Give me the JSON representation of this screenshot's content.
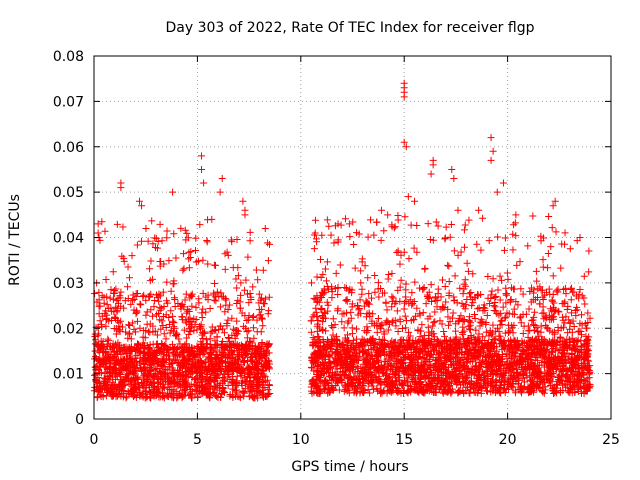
{
  "chart_data": {
    "type": "scatter",
    "title": "Day 303 of 2022, Rate Of TEC Index for receiver flgp",
    "xlabel": "GPS time / hours",
    "ylabel": "ROTI / TECUs",
    "xlim": [
      0,
      25
    ],
    "ylim": [
      0,
      0.08
    ],
    "xticks": [
      0,
      5,
      10,
      15,
      20,
      25
    ],
    "yticks": [
      0,
      0.01,
      0.02,
      0.03,
      0.04,
      0.05,
      0.06,
      0.07,
      0.08
    ],
    "xtick_labels": [
      "0",
      "5",
      "10",
      "15",
      "20",
      "25"
    ],
    "ytick_labels": [
      "0",
      "0.01",
      "0.02",
      "0.03",
      "0.04",
      "0.05",
      "0.06",
      "0.07",
      "0.08"
    ],
    "grid": true,
    "marker": "+",
    "series_color": "#ff0000",
    "series": [
      {
        "name": "ROTI",
        "segments": [
          {
            "x_start": 0.0,
            "x_end": 8.5,
            "base": 0.01
          },
          {
            "x_start": 10.5,
            "x_end": 24.0,
            "base": 0.011
          }
        ],
        "points": [
          [
            0.2,
            0.041
          ],
          [
            0.2,
            0.043
          ],
          [
            1.3,
            0.052
          ],
          [
            1.3,
            0.051
          ],
          [
            2.2,
            0.048
          ],
          [
            2.3,
            0.047
          ],
          [
            3.8,
            0.05
          ],
          [
            4.2,
            0.042
          ],
          [
            5.2,
            0.058
          ],
          [
            5.2,
            0.055
          ],
          [
            5.3,
            0.052
          ],
          [
            6.2,
            0.053
          ],
          [
            6.1,
            0.05
          ],
          [
            7.2,
            0.048
          ],
          [
            7.3,
            0.045
          ],
          [
            7.3,
            0.046
          ],
          [
            10.7,
            0.041
          ],
          [
            11.8,
            0.043
          ],
          [
            13.9,
            0.046
          ],
          [
            14.2,
            0.045
          ],
          [
            15.0,
            0.074
          ],
          [
            15.0,
            0.073
          ],
          [
            15.0,
            0.072
          ],
          [
            15.0,
            0.071
          ],
          [
            15.0,
            0.061
          ],
          [
            15.1,
            0.06
          ],
          [
            15.2,
            0.049
          ],
          [
            15.5,
            0.048
          ],
          [
            16.4,
            0.057
          ],
          [
            16.4,
            0.056
          ],
          [
            16.3,
            0.054
          ],
          [
            17.3,
            0.055
          ],
          [
            17.4,
            0.053
          ],
          [
            17.6,
            0.046
          ],
          [
            18.6,
            0.046
          ],
          [
            19.2,
            0.062
          ],
          [
            19.3,
            0.059
          ],
          [
            19.2,
            0.057
          ],
          [
            19.5,
            0.05
          ],
          [
            19.8,
            0.052
          ],
          [
            20.4,
            0.045
          ],
          [
            22.2,
            0.047
          ],
          [
            22.3,
            0.048
          ],
          [
            23.5,
            0.04
          ]
        ]
      }
    ]
  }
}
